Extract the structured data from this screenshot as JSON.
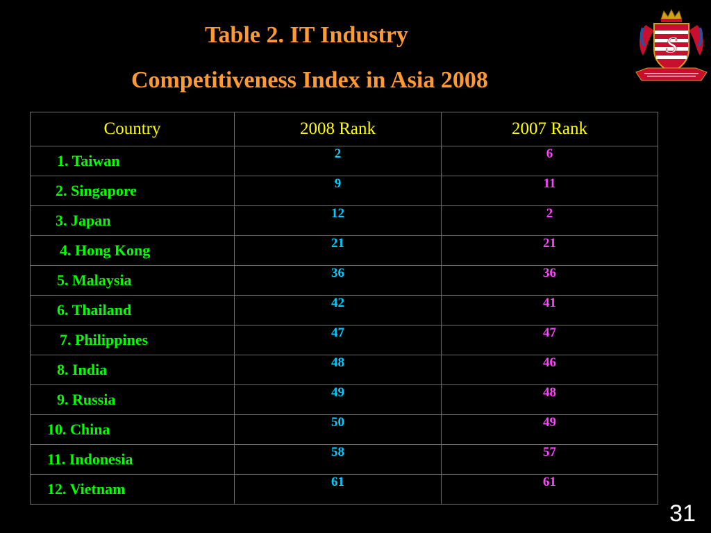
{
  "title": {
    "line1": "Table 2. IT Industry",
    "line2": "Competitiveness Index in Asia 2008"
  },
  "table": {
    "headers": [
      "Country",
      "2008 Rank",
      "2007 Rank"
    ],
    "rows": [
      {
        "country": "1. Taiwan",
        "rank_2008": "2",
        "rank_2007": "6"
      },
      {
        "country": "2. Singapore",
        "rank_2008": "9",
        "rank_2007": "11"
      },
      {
        "country": "3. Japan",
        "rank_2008": "12",
        "rank_2007": "2"
      },
      {
        "country": "4. Hong Kong",
        "rank_2008": "21",
        "rank_2007": "21"
      },
      {
        "country": "5. Malaysia",
        "rank_2008": "36",
        "rank_2007": "36"
      },
      {
        "country": "6. Thailand",
        "rank_2008": "42",
        "rank_2007": "41"
      },
      {
        "country": "7. Philippines",
        "rank_2008": "47",
        "rank_2007": "47"
      },
      {
        "country": "8. India",
        "rank_2008": "48",
        "rank_2007": "46"
      },
      {
        "country": "9. Russia",
        "rank_2008": "49",
        "rank_2007": "48"
      },
      {
        "country": "10. China",
        "rank_2008": "50",
        "rank_2007": "49"
      },
      {
        "country": "11. Indonesia",
        "rank_2008": "58",
        "rank_2007": "57"
      },
      {
        "country": "12. Vietnam",
        "rank_2008": "61",
        "rank_2007": "61"
      }
    ]
  },
  "page_number": "31",
  "colors": {
    "background": "#000000",
    "title": "#ff9933",
    "header_text": "#ffff00",
    "country_text": "#00ff00",
    "rank_2008_text": "#00ccff",
    "rank_2007_text": "#ff44ff",
    "grid_lines": "#6e6e6e"
  },
  "icons": {
    "logo": "crest-logo-icon"
  }
}
